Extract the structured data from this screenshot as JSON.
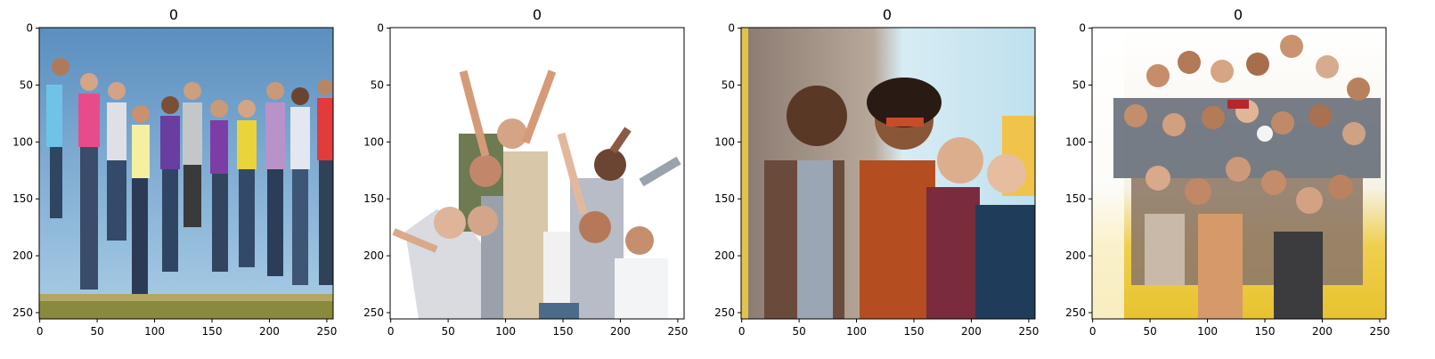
{
  "figure": {
    "panels": [
      {
        "title": "0",
        "scene": "crowd-jumping-outdoors",
        "x_ticks": [
          "0",
          "50",
          "100",
          "150",
          "200",
          "250"
        ],
        "y_ticks": [
          "0",
          "50",
          "100",
          "150",
          "200",
          "250"
        ]
      },
      {
        "title": "0",
        "scene": "cheering-group-white-background",
        "x_ticks": [
          "0",
          "50",
          "100",
          "150",
          "200",
          "250"
        ],
        "y_ticks": [
          "0",
          "50",
          "100",
          "150",
          "200",
          "250"
        ]
      },
      {
        "title": "0",
        "scene": "friends-laughing-sunlight",
        "x_ticks": [
          "0",
          "50",
          "100",
          "150",
          "200",
          "250"
        ],
        "y_ticks": [
          "0",
          "50",
          "100",
          "150",
          "200",
          "250"
        ]
      },
      {
        "title": "0",
        "scene": "large-diverse-crowd-waving",
        "x_ticks": [
          "0",
          "50",
          "100",
          "150",
          "200",
          "250"
        ],
        "y_ticks": [
          "0",
          "50",
          "100",
          "150",
          "200",
          "250"
        ]
      }
    ],
    "axis_range": [
      0,
      256
    ]
  }
}
